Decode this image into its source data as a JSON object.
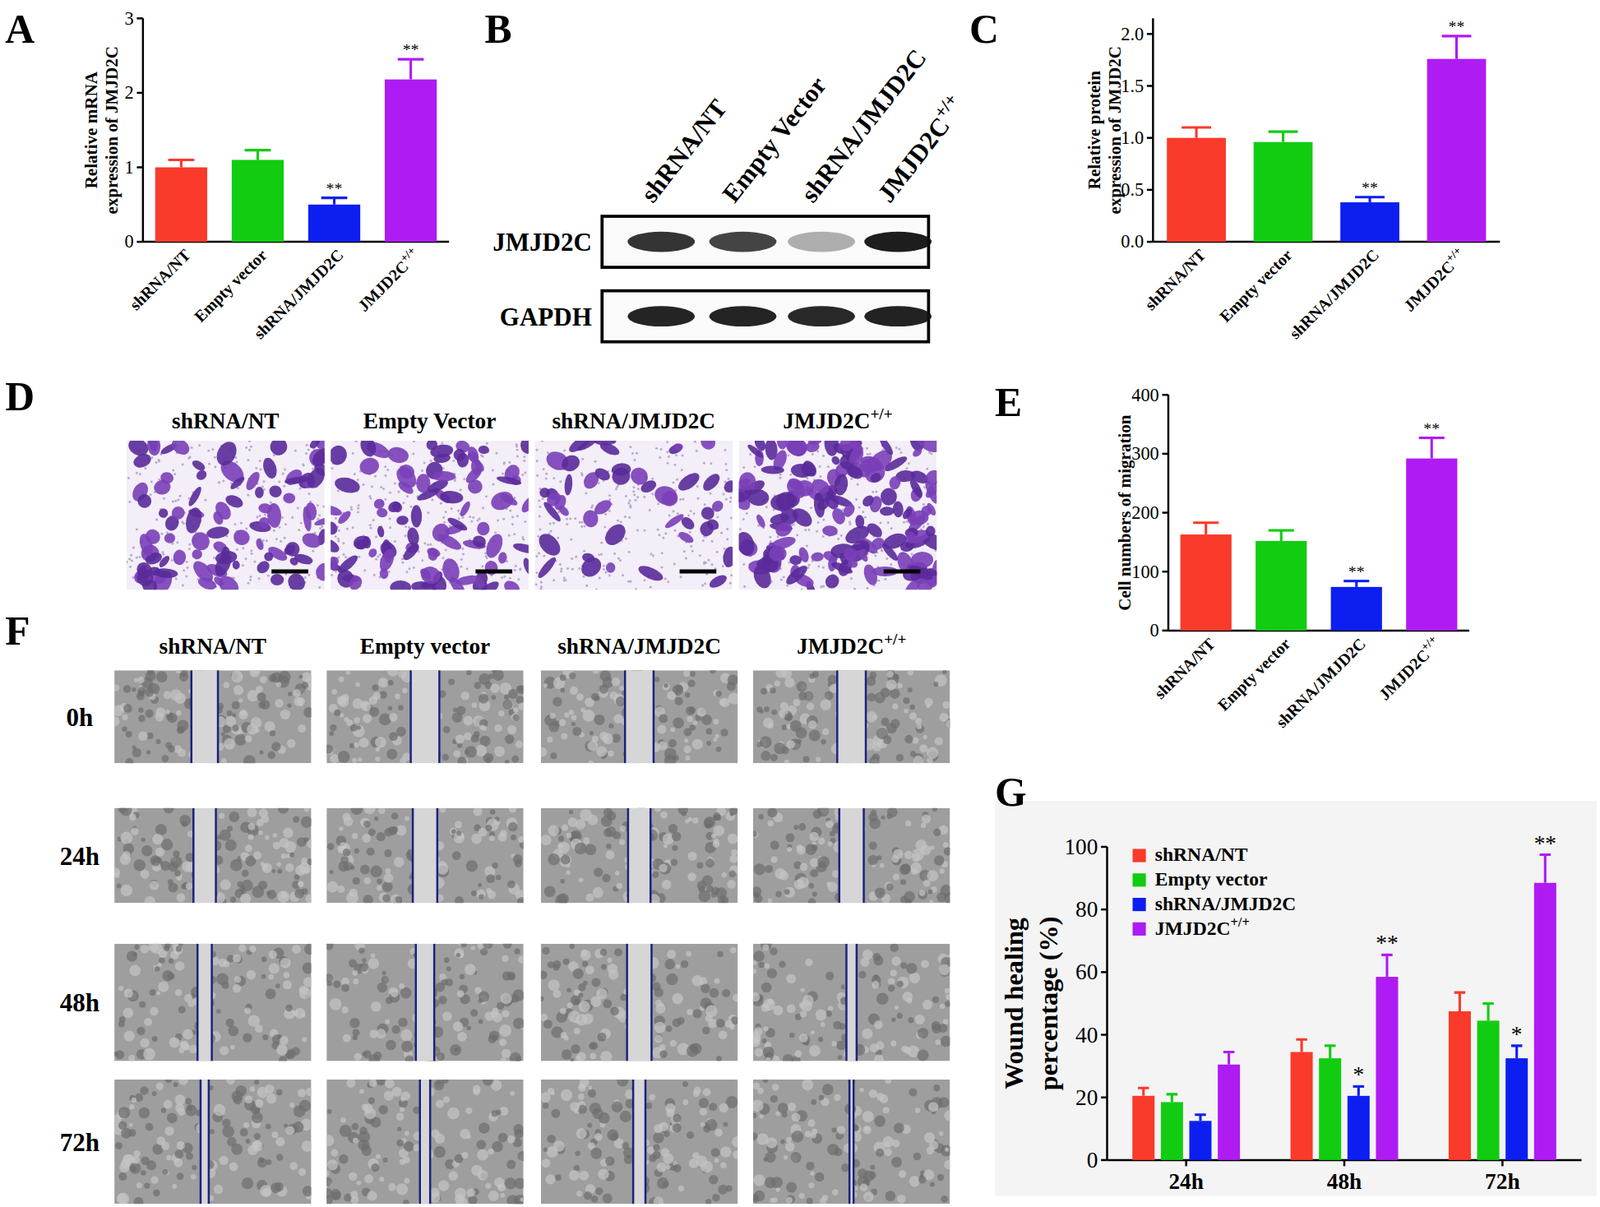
{
  "chart_data": [
    {
      "type": "bar",
      "title": "A",
      "ylabel": [
        "Relative mRNA",
        "expression of JMJD2C"
      ],
      "categories": [
        "shRNA/NT",
        "Empty vector",
        "shRNA/JMJD2C",
        "JMJD2C+/+"
      ],
      "values": [
        1.0,
        1.1,
        0.5,
        2.18
      ],
      "errors": [
        0.1,
        0.13,
        0.09,
        0.27
      ],
      "annotations": [
        null,
        null,
        "**",
        "**"
      ],
      "colors": [
        "#fa3a2a",
        "#12cc12",
        "#0d1ff0",
        "#ae1cf3"
      ],
      "ylim": [
        0,
        3
      ],
      "yticks": [
        0,
        1,
        2,
        3
      ]
    },
    {
      "type": "bar",
      "title": "C",
      "ylabel": [
        "Relative protein",
        "expression of JMJD2C"
      ],
      "categories": [
        "shRNA/NT",
        "Empty vector",
        "shRNA/JMJD2C",
        "JMJD2C+/+"
      ],
      "values": [
        1.0,
        0.96,
        0.38,
        1.76
      ],
      "errors": [
        0.1,
        0.1,
        0.05,
        0.22
      ],
      "annotations": [
        null,
        null,
        "**",
        "**"
      ],
      "colors": [
        "#fa3a2a",
        "#12cc12",
        "#0d1ff0",
        "#ae1cf3"
      ],
      "ylim": [
        0,
        2.15
      ],
      "yticks": [
        {
          "value": 0,
          "label": "0.0"
        },
        0.5,
        {
          "value": 1,
          "label": "1.0"
        },
        1.5,
        {
          "value": 2,
          "label": "2.0"
        }
      ]
    },
    {
      "type": "bar",
      "title": "E",
      "ylabel": [
        "Cell numbers of migration"
      ],
      "categories": [
        "shRNA/NT",
        "Empty vector",
        "shRNA/JMJD2C",
        "JMJD2C+/+"
      ],
      "values": [
        163,
        152,
        74,
        292
      ],
      "errors": [
        20,
        18,
        10,
        35
      ],
      "annotations": [
        null,
        null,
        "**",
        "**"
      ],
      "colors": [
        "#fa3a2a",
        "#12cc12",
        "#0d1ff0",
        "#ae1cf3"
      ],
      "ylim": [
        0,
        400
      ],
      "yticks": [
        0,
        100,
        200,
        300,
        400
      ]
    },
    {
      "type": "bar",
      "title": "G",
      "ylabel": [
        "Wound healing",
        "percentage (%)"
      ],
      "categories": [
        "24h",
        "48h",
        "72h"
      ],
      "legend": "top-left",
      "series": [
        {
          "name": "shRNA/NT",
          "color": "#fa3a2a",
          "values": [
            20.5,
            34.5,
            47.5
          ],
          "errors": [
            2.5,
            4,
            6
          ],
          "annotations": [
            null,
            null,
            null
          ]
        },
        {
          "name": "Empty vector",
          "color": "#12cc12",
          "values": [
            18.5,
            32.5,
            44.5
          ],
          "errors": [
            2.5,
            4,
            5.5
          ],
          "annotations": [
            null,
            null,
            null
          ]
        },
        {
          "name": "shRNA/JMJD2C",
          "color": "#0d1ff0",
          "values": [
            12.5,
            20.5,
            32.5
          ],
          "errors": [
            2,
            3,
            4
          ],
          "annotations": [
            null,
            "*",
            "*"
          ]
        },
        {
          "name": "JMJD2C+/+",
          "color": "#ae1cf3",
          "values": [
            30.5,
            58.5,
            88.5
          ],
          "errors": [
            4,
            7,
            9
          ],
          "annotations": [
            null,
            "**",
            "**"
          ]
        }
      ],
      "ylim": [
        0,
        100
      ],
      "yticks": [
        0,
        20,
        40,
        60,
        80,
        100
      ]
    }
  ],
  "blot": {
    "letter": "B",
    "lanes": [
      "shRNA/NT",
      "Empty Vector",
      "shRNA/JMJD2C",
      "JMJD2C+/+"
    ],
    "rows": [
      "JMJD2C",
      "GAPDH"
    ]
  },
  "transwell": {
    "letter": "D",
    "columns": [
      "shRNA/NT",
      "Empty Vector",
      "shRNA/JMJD2C",
      "JMJD2C+/+"
    ]
  },
  "wound_healing": {
    "letter": "F",
    "columns": [
      "shRNA/NT",
      "Empty vector",
      "shRNA/JMJD2C",
      "JMJD2C+/+"
    ],
    "rows": [
      "0h",
      "24h",
      "48h",
      "72h"
    ]
  }
}
